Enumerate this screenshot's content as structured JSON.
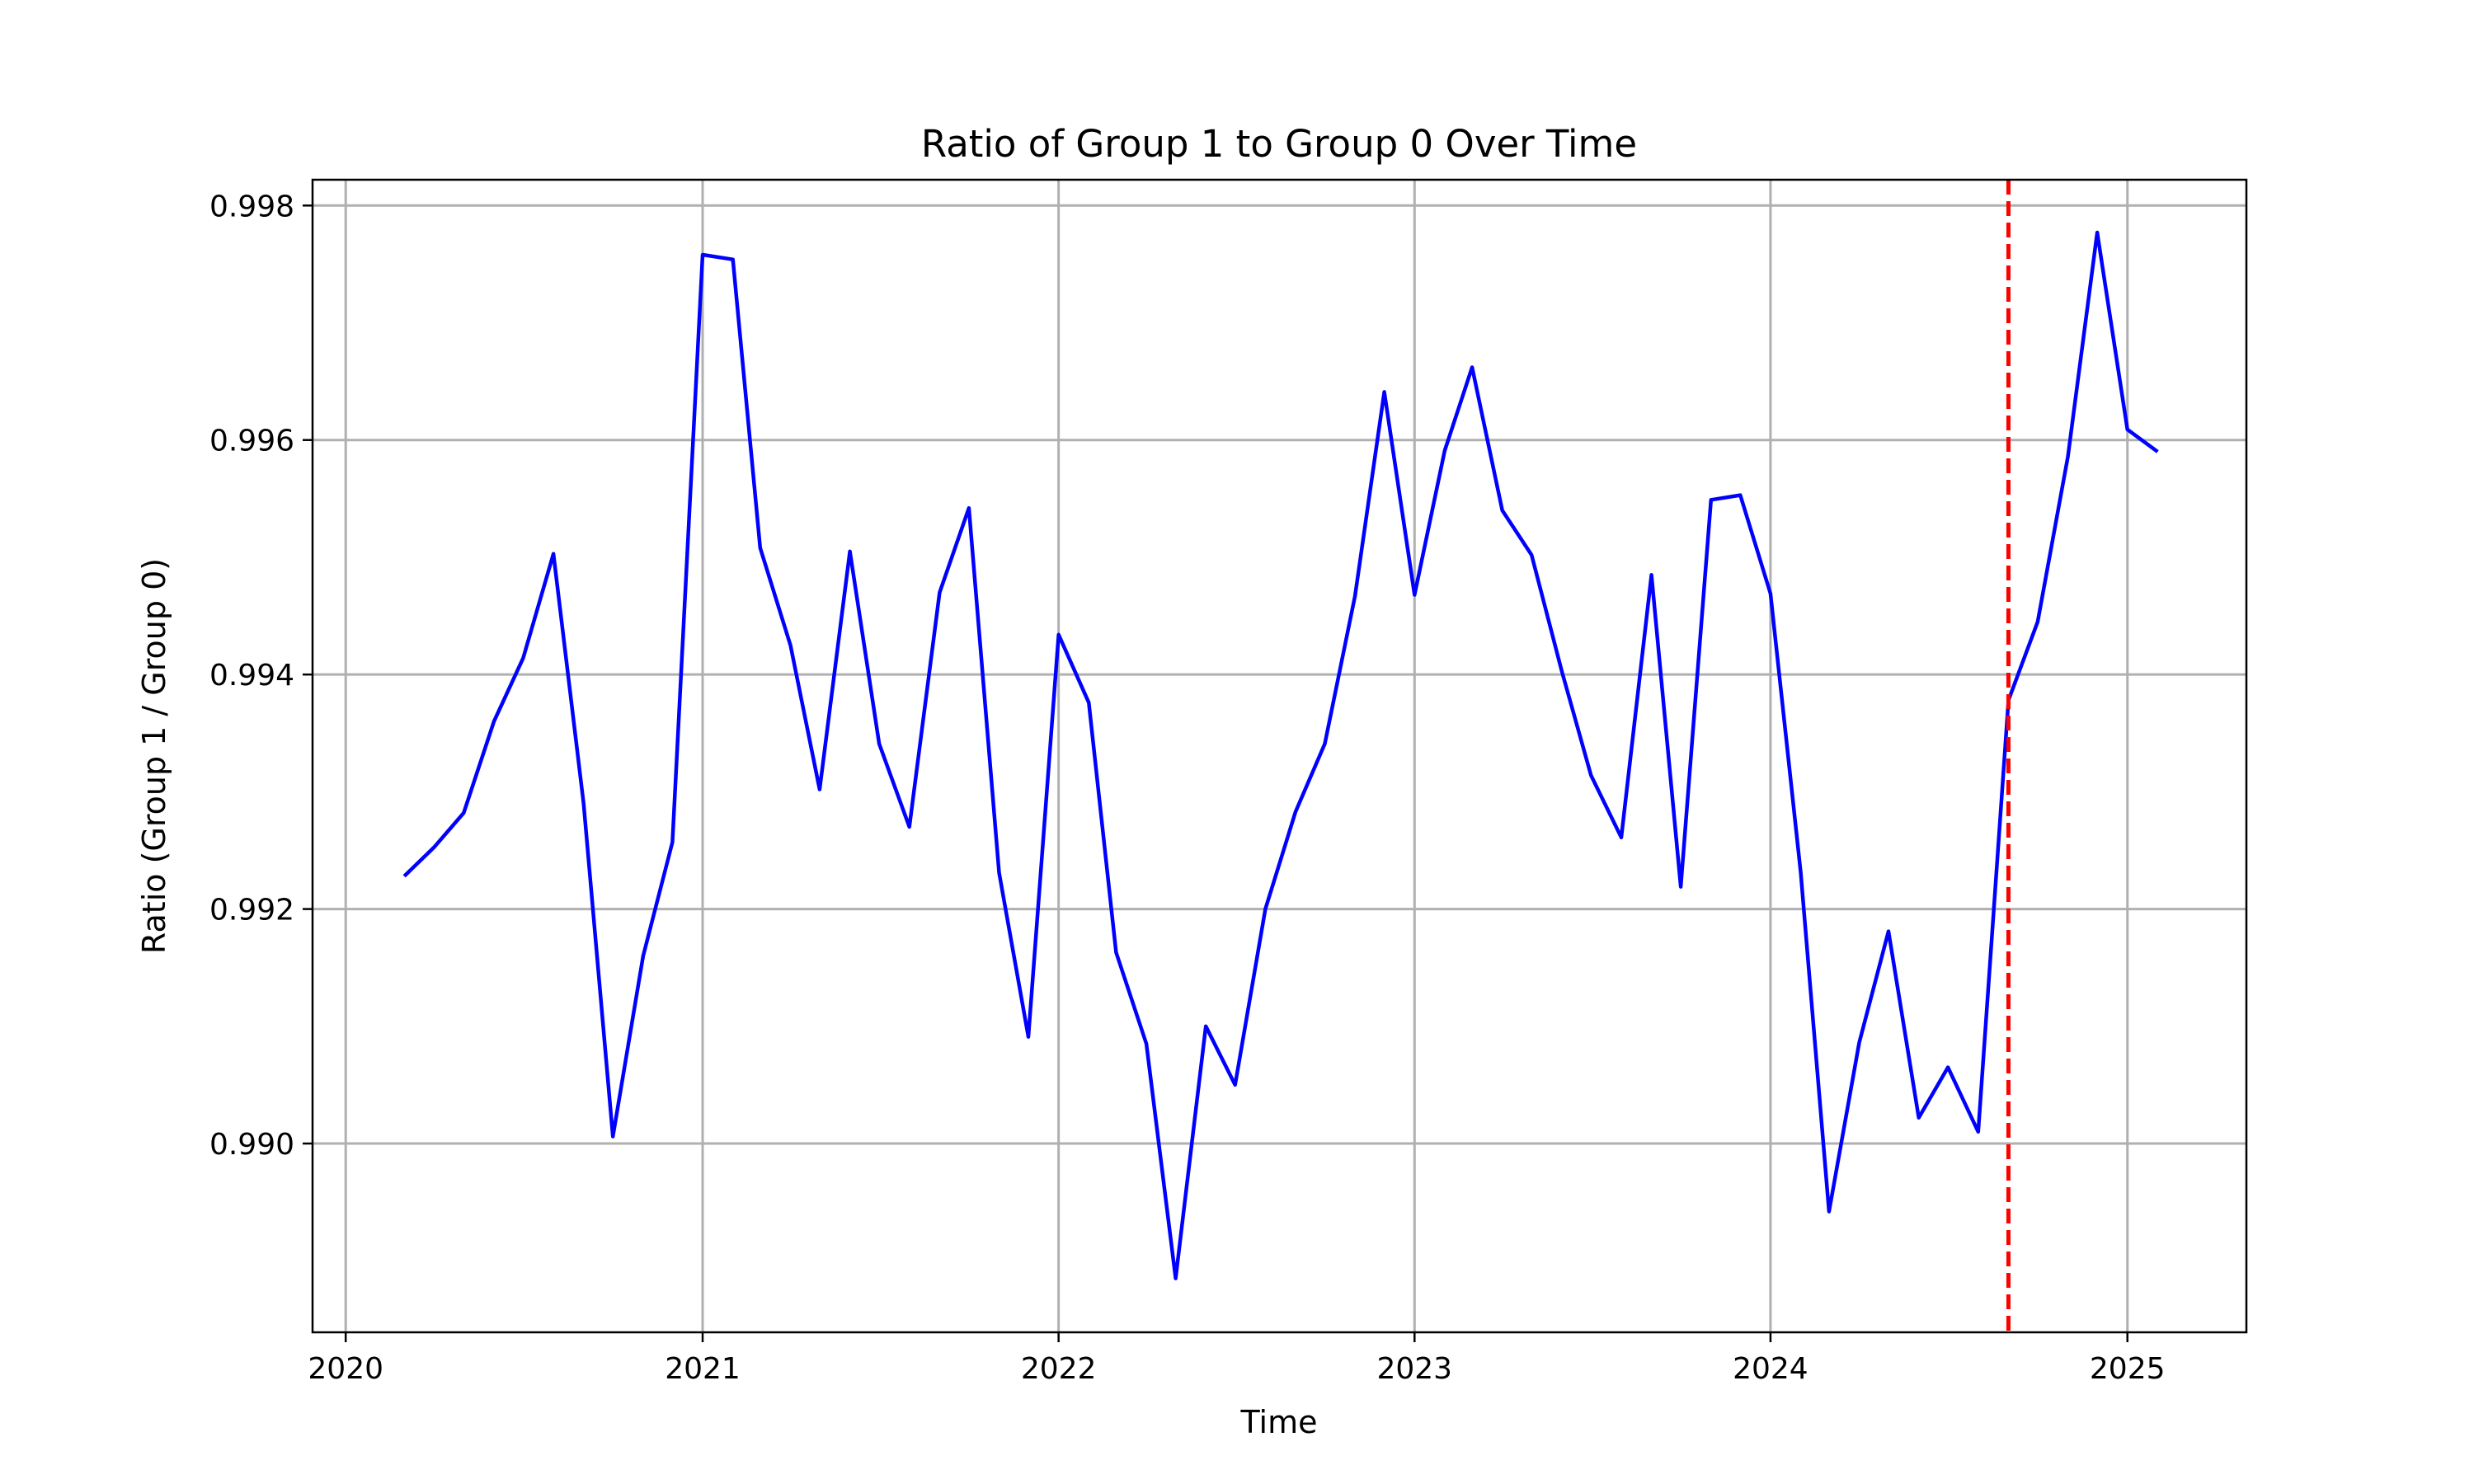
{
  "chart_data": {
    "type": "line",
    "title": "Ratio of Group 1 to Group 0 Over Time",
    "xlabel": "Time",
    "ylabel": "Ratio (Group 1 / Group 0)",
    "grid": true,
    "xlim": [
      "2019-11-28",
      "2025-05-03"
    ],
    "ylim": [
      0.98839,
      0.99822
    ],
    "x_ticks": [
      "2020",
      "2021",
      "2022",
      "2023",
      "2024",
      "2025"
    ],
    "y_ticks": [
      "0.990",
      "0.992",
      "0.994",
      "0.996",
      "0.998"
    ],
    "vline": {
      "x": "2024-09-01",
      "color": "#ff0000",
      "style": "dashed"
    },
    "series": [
      {
        "color": "#0000ff",
        "x": [
          "2020-03-01",
          "2020-04-01",
          "2020-05-01",
          "2020-06-01",
          "2020-07-01",
          "2020-08-01",
          "2020-09-01",
          "2020-10-01",
          "2020-11-01",
          "2020-12-01",
          "2021-01-01",
          "2021-02-01",
          "2021-03-01",
          "2021-04-01",
          "2021-05-01",
          "2021-06-01",
          "2021-07-01",
          "2021-08-01",
          "2021-09-01",
          "2021-10-01",
          "2021-11-01",
          "2021-12-01",
          "2022-01-01",
          "2022-02-01",
          "2022-03-01",
          "2022-04-01",
          "2022-05-01",
          "2022-06-01",
          "2022-07-01",
          "2022-08-01",
          "2022-09-01",
          "2022-10-01",
          "2022-11-01",
          "2022-12-01",
          "2023-01-01",
          "2023-02-01",
          "2023-03-01",
          "2023-04-01",
          "2023-05-01",
          "2023-06-01",
          "2023-07-01",
          "2023-08-01",
          "2023-09-01",
          "2023-10-01",
          "2023-11-01",
          "2023-12-01",
          "2024-01-01",
          "2024-02-01",
          "2024-03-01",
          "2024-04-01",
          "2024-05-01",
          "2024-06-01",
          "2024-07-01",
          "2024-08-01",
          "2024-09-01",
          "2024-10-01",
          "2024-11-01",
          "2024-12-01",
          "2025-01-01",
          "2025-02-01"
        ],
        "values": [
          0.99228,
          0.99253,
          0.99282,
          0.9936,
          0.99414,
          0.99503,
          0.9929,
          0.99006,
          0.9916,
          0.99257,
          0.99758,
          0.99754,
          0.99508,
          0.99425,
          0.99302,
          0.99505,
          0.99341,
          0.9927,
          0.9947,
          0.99542,
          0.99231,
          0.99091,
          0.99434,
          0.99376,
          0.99163,
          0.99085,
          0.98885,
          0.991,
          0.9905,
          0.992,
          0.99283,
          0.99341,
          0.99467,
          0.99641,
          0.99468,
          0.99591,
          0.99662,
          0.9954,
          0.99502,
          0.99403,
          0.99314,
          0.99261,
          0.99485,
          0.99219,
          0.99549,
          0.99553,
          0.99469,
          0.99231,
          0.98942,
          0.99086,
          0.99181,
          0.99022,
          0.99065,
          0.9901,
          0.99378,
          0.99445,
          0.99586,
          0.99777,
          0.99609,
          0.9959
        ]
      }
    ]
  }
}
